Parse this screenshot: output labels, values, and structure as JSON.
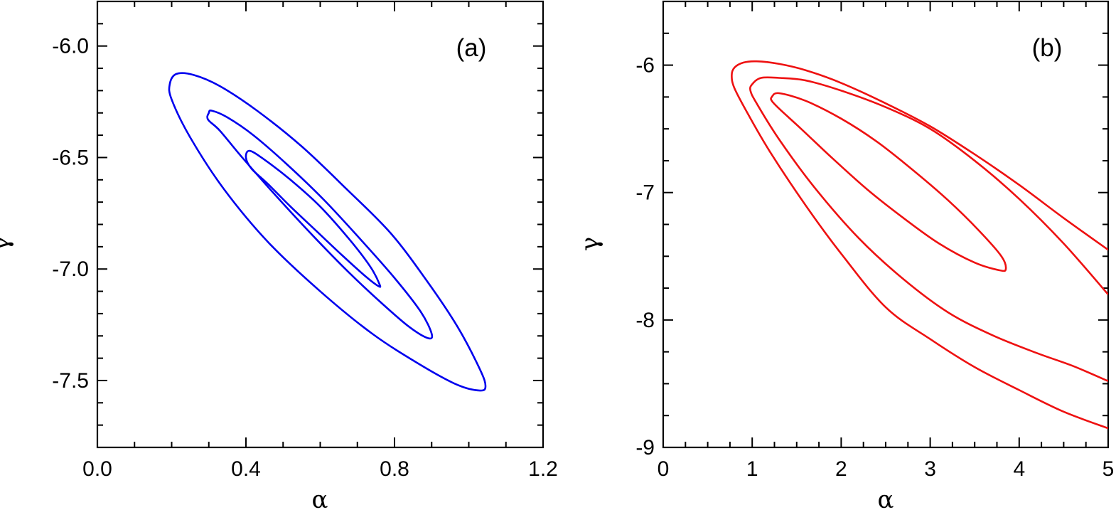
{
  "chart_data": [
    {
      "type": "line",
      "panel_label": "(a)",
      "xlabel": "α",
      "ylabel": "γ",
      "xlim": [
        0.0,
        1.2
      ],
      "ylim": [
        -7.8,
        -5.8
      ],
      "xticks": [
        0.0,
        0.4,
        0.8,
        1.2
      ],
      "xtick_labels": [
        "0.0",
        "0.4",
        "0.8",
        "1.2"
      ],
      "yticks": [
        -6.0,
        -6.5,
        -7.0,
        -7.5
      ],
      "ytick_labels": [
        "-6.0",
        "-6.5",
        "-7.0",
        "-7.5"
      ],
      "x_minor_step": 0.1,
      "y_minor_step": 0.1,
      "grid": false,
      "line_color": "#0000ee",
      "series": [
        {
          "closed": true,
          "x": [
            0.213,
            0.26,
            0.33,
            0.43,
            0.55,
            0.67,
            0.79,
            0.89,
            0.97,
            1.03,
            1.045,
            1.03,
            0.97,
            0.87,
            0.74,
            0.6,
            0.46,
            0.34,
            0.25,
            0.2,
            0.195,
            0.213
          ],
          "y": [
            -6.125,
            -6.13,
            -6.18,
            -6.29,
            -6.45,
            -6.64,
            -6.84,
            -7.06,
            -7.26,
            -7.45,
            -7.525,
            -7.545,
            -7.52,
            -7.43,
            -7.29,
            -7.1,
            -6.88,
            -6.64,
            -6.41,
            -6.24,
            -6.17,
            -6.125
          ]
        },
        {
          "closed": true,
          "x": [
            0.308,
            0.35,
            0.42,
            0.51,
            0.61,
            0.71,
            0.8,
            0.87,
            0.9,
            0.89,
            0.84,
            0.77,
            0.68,
            0.58,
            0.48,
            0.39,
            0.33,
            0.298,
            0.3,
            0.308
          ],
          "y": [
            -6.29,
            -6.32,
            -6.4,
            -6.53,
            -6.69,
            -6.87,
            -7.04,
            -7.19,
            -7.29,
            -7.31,
            -7.26,
            -7.16,
            -7.02,
            -6.85,
            -6.67,
            -6.5,
            -6.38,
            -6.33,
            -6.3,
            -6.29
          ]
        },
        {
          "closed": true,
          "x": [
            0.41,
            0.45,
            0.52,
            0.6,
            0.68,
            0.735,
            0.76,
            0.755,
            0.72,
            0.66,
            0.59,
            0.52,
            0.46,
            0.415,
            0.4,
            0.41
          ],
          "y": [
            -6.47,
            -6.51,
            -6.6,
            -6.72,
            -6.87,
            -6.99,
            -7.07,
            -7.075,
            -7.03,
            -6.94,
            -6.83,
            -6.72,
            -6.62,
            -6.55,
            -6.5,
            -6.47
          ]
        }
      ]
    },
    {
      "type": "line",
      "panel_label": "(b)",
      "xlabel": "α",
      "ylabel": "γ",
      "xlim": [
        0,
        5
      ],
      "ylim": [
        -9,
        -5.5
      ],
      "xticks": [
        0,
        1,
        2,
        3,
        4,
        5
      ],
      "xtick_labels": [
        "0",
        "1",
        "2",
        "3",
        "4",
        "5"
      ],
      "yticks": [
        -6,
        -7,
        -8,
        -9
      ],
      "ytick_labels": [
        "-6",
        "-7",
        "-8",
        "-9"
      ],
      "x_minor_step": 0.25,
      "y_minor_step": 0.25,
      "grid": false,
      "line_color": "#ee1111",
      "series": [
        {
          "closed": false,
          "x": [
            5.0,
            4.5,
            4.0,
            3.5,
            3.0,
            2.5,
            2.0,
            1.6,
            1.3,
            1.05,
            0.9,
            0.8,
            0.77,
            0.8,
            0.95,
            1.2,
            1.6,
            2.0,
            2.5,
            3.0,
            3.5,
            4.0,
            4.5,
            5.0
          ],
          "y": [
            -7.45,
            -7.2,
            -6.94,
            -6.7,
            -6.48,
            -6.3,
            -6.14,
            -6.04,
            -5.99,
            -5.97,
            -5.98,
            -6.02,
            -6.08,
            -6.18,
            -6.38,
            -6.68,
            -7.1,
            -7.48,
            -7.9,
            -8.15,
            -8.37,
            -8.55,
            -8.72,
            -8.85
          ]
        },
        {
          "closed": false,
          "x": [
            5.0,
            4.5,
            4.0,
            3.5,
            3.0,
            2.5,
            2.0,
            1.6,
            1.3,
            1.1,
            1.0,
            0.98,
            1.05,
            1.3,
            1.7,
            2.2,
            2.7,
            3.2,
            3.7,
            4.2,
            4.6,
            5.0
          ],
          "y": [
            -7.8,
            -7.4,
            -7.05,
            -6.75,
            -6.5,
            -6.33,
            -6.2,
            -6.12,
            -6.1,
            -6.1,
            -6.15,
            -6.2,
            -6.3,
            -6.58,
            -6.96,
            -7.36,
            -7.68,
            -7.94,
            -8.12,
            -8.26,
            -8.36,
            -8.48
          ]
        },
        {
          "closed": true,
          "x": [
            1.3,
            1.6,
            2.0,
            2.4,
            2.8,
            3.2,
            3.55,
            3.8,
            3.85,
            3.78,
            3.5,
            3.1,
            2.7,
            2.3,
            1.9,
            1.55,
            1.3,
            1.22,
            1.22,
            1.3
          ],
          "y": [
            -6.22,
            -6.28,
            -6.42,
            -6.6,
            -6.82,
            -7.06,
            -7.3,
            -7.5,
            -7.6,
            -7.61,
            -7.55,
            -7.4,
            -7.2,
            -6.98,
            -6.73,
            -6.5,
            -6.34,
            -6.28,
            -6.25,
            -6.22
          ]
        }
      ]
    }
  ]
}
